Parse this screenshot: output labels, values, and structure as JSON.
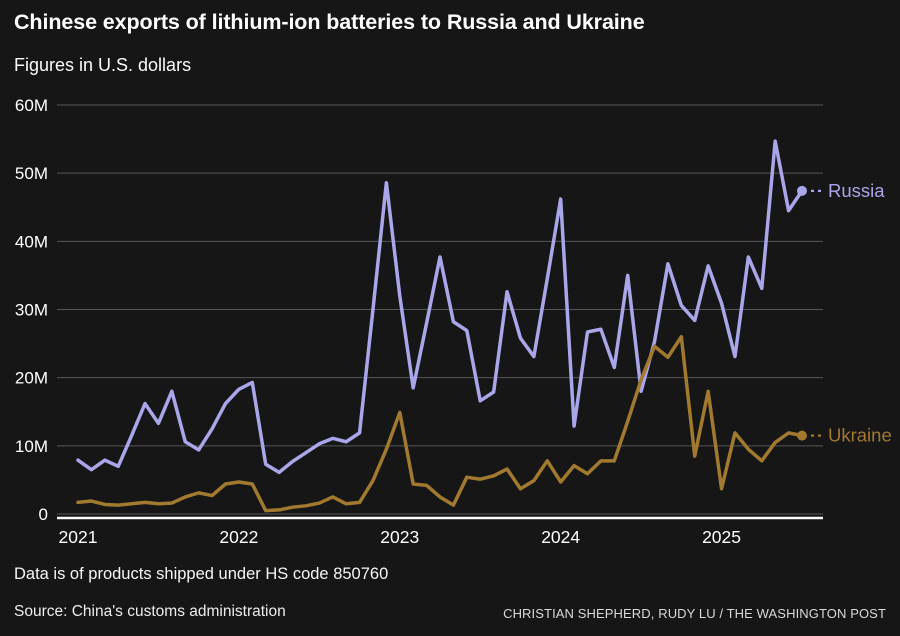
{
  "header": {
    "title": "Chinese exports of lithium-ion batteries to Russia and Ukraine",
    "subtitle": "Figures in U.S. dollars"
  },
  "footer": {
    "note": "Data is of products shipped under HS code 850760",
    "source": "Source: China's customs administration",
    "credit": "CHRISTIAN SHEPHERD, RUDY LU / THE WASHINGTON POST"
  },
  "colors": {
    "background": "#161616",
    "text": "#ffffff",
    "gridline": "#565656",
    "zero_axis": "#fafafa",
    "russia": "#a9a6e9",
    "ukraine": "#a1792f"
  },
  "chart_data": {
    "type": "line",
    "title": "Chinese exports of lithium-ion batteries to Russia and Ukraine",
    "subtitle": "Figures in U.S. dollars",
    "unit": "USD millions",
    "x_frequency": "monthly",
    "x_start_month": "2021-01",
    "x_end_month": "2025-07",
    "x_tick_labels": [
      "2021",
      "2022",
      "2023",
      "2024",
      "2025"
    ],
    "ylim": [
      0,
      60
    ],
    "grid": "horizontal",
    "legend_position": "line-end-labels",
    "y_ticks": [
      {
        "value": 0,
        "label": "0"
      },
      {
        "value": 10,
        "label": "10M"
      },
      {
        "value": 20,
        "label": "20M"
      },
      {
        "value": 30,
        "label": "30M"
      },
      {
        "value": 40,
        "label": "40M"
      },
      {
        "value": 50,
        "label": "50M"
      },
      {
        "value": 60,
        "label": "60M"
      }
    ],
    "series": [
      {
        "name": "Russia",
        "color": "#a9a6e9",
        "values": [
          7.9,
          6.5,
          7.9,
          7.0,
          11.5,
          16.2,
          13.3,
          18.0,
          10.6,
          9.4,
          12.5,
          16.2,
          18.3,
          19.3,
          7.3,
          6.1,
          7.7,
          9.0,
          10.3,
          11.1,
          10.6,
          11.9,
          30.0,
          48.6,
          32.0,
          18.5,
          28.0,
          37.7,
          28.2,
          26.9,
          16.6,
          17.9,
          32.6,
          25.8,
          23.1,
          34.5,
          46.2,
          12.9,
          26.7,
          27.1,
          21.5,
          35.0,
          18.0,
          25.3,
          36.7,
          30.6,
          28.4,
          36.4,
          30.9,
          23.1,
          37.7,
          33.1,
          54.7,
          44.5,
          47.4
        ]
      },
      {
        "name": "Ukraine",
        "color": "#a1792f",
        "values": [
          1.7,
          1.9,
          1.4,
          1.3,
          1.5,
          1.7,
          1.5,
          1.6,
          2.5,
          3.1,
          2.7,
          4.4,
          4.7,
          4.4,
          0.5,
          0.6,
          1.0,
          1.2,
          1.6,
          2.5,
          1.5,
          1.7,
          4.9,
          9.5,
          14.9,
          4.4,
          4.2,
          2.5,
          1.3,
          5.4,
          5.1,
          5.6,
          6.6,
          3.7,
          4.9,
          7.8,
          4.7,
          7.1,
          5.9,
          7.8,
          7.8,
          13.6,
          19.7,
          24.6,
          23.0,
          26.0,
          8.5,
          18.0,
          3.7,
          11.9,
          9.5,
          7.8,
          10.5,
          11.9,
          11.5
        ]
      }
    ]
  }
}
